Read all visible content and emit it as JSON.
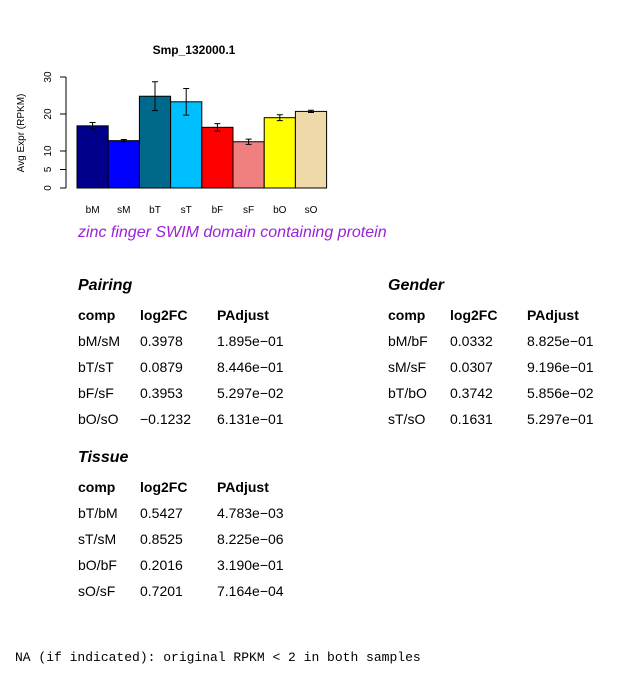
{
  "chart_data": {
    "type": "bar",
    "title": "Smp_132000.1",
    "ylabel": "Avg Expr (RPKM)",
    "xlabel": "",
    "categories": [
      "bM",
      "sM",
      "bT",
      "sT",
      "bF",
      "sF",
      "bO",
      "sO"
    ],
    "values": [
      16.8,
      12.8,
      24.8,
      23.3,
      16.4,
      12.5,
      19.0,
      20.7
    ],
    "errors": [
      0.9,
      0.3,
      3.9,
      3.6,
      1.0,
      0.7,
      0.8,
      0.3
    ],
    "colors": [
      "#00008b",
      "#0000ff",
      "#00688b",
      "#00bfff",
      "#ff0000",
      "#f08080",
      "#ffff00",
      "#f0d9a8"
    ],
    "yticks": [
      0,
      5,
      10,
      20,
      30
    ],
    "ylim": [
      0,
      30
    ],
    "grid": false
  },
  "gene_description": "zinc finger SWIM domain containing protein",
  "tables": {
    "pairing": {
      "title": "Pairing",
      "headers": [
        "comp",
        "log2FC",
        "PAdjust"
      ],
      "rows": [
        [
          "bM/sM",
          "0.3978",
          "1.895e−01"
        ],
        [
          "bT/sT",
          "0.0879",
          "8.446e−01"
        ],
        [
          "bF/sF",
          "0.3953",
          "5.297e−02"
        ],
        [
          "bO/sO",
          "−0.1232",
          "6.131e−01"
        ]
      ]
    },
    "gender": {
      "title": "Gender",
      "headers": [
        "comp",
        "log2FC",
        "PAdjust"
      ],
      "rows": [
        [
          "bM/bF",
          "0.0332",
          "8.825e−01"
        ],
        [
          "sM/sF",
          "0.0307",
          "9.196e−01"
        ],
        [
          "bT/bO",
          "0.3742",
          "5.856e−02"
        ],
        [
          "sT/sO",
          "0.1631",
          "5.297e−01"
        ]
      ]
    },
    "tissue": {
      "title": "Tissue",
      "headers": [
        "comp",
        "log2FC",
        "PAdjust"
      ],
      "rows": [
        [
          "bT/bM",
          "0.5427",
          "4.783e−03"
        ],
        [
          "sT/sM",
          "0.8525",
          "8.225e−06"
        ],
        [
          "bO/bF",
          "0.2016",
          "3.190e−01"
        ],
        [
          "sO/sF",
          "0.7201",
          "7.164e−04"
        ]
      ]
    }
  },
  "footnote": "NA (if indicated): original RPKM < 2 in both samples"
}
